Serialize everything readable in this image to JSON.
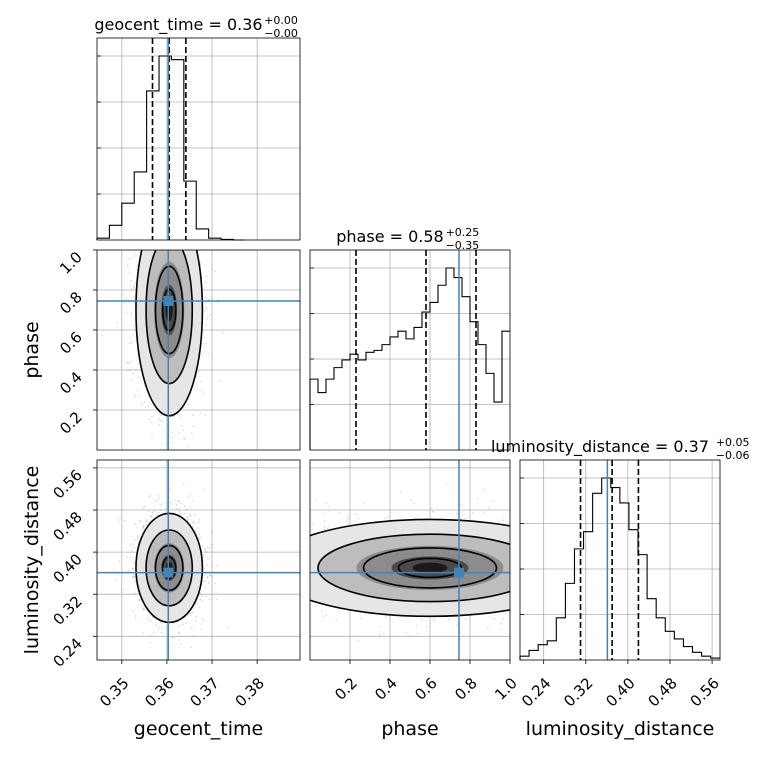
{
  "chart_data": {
    "type": "corner",
    "parameters": [
      "geocent_time",
      "phase",
      "luminosity_distance"
    ],
    "truths": {
      "geocent_time": 0.3603,
      "phase": 0.745,
      "luminosity_distance": 0.361
    },
    "marginals": [
      {
        "parameter": "geocent_time",
        "title": "geocent_time = 0.36",
        "sup": "+0.00",
        "sub": "−0.00",
        "median": 0.3605,
        "quantiles": [
          0.3568,
          0.3605,
          0.3642
        ],
        "xlim": [
          0.3445,
          0.3895
        ],
        "bin_edges": [
          0.3445,
          0.34725,
          0.35,
          0.35275,
          0.3555,
          0.35825,
          0.361,
          0.36375,
          0.3665,
          0.36925,
          0.372,
          0.37475,
          0.3775
        ],
        "counts": [
          0.01,
          0.08,
          0.2,
          0.37,
          0.81,
          1.0,
          0.98,
          0.32,
          0.06,
          0.01,
          0.003,
          0.0
        ]
      },
      {
        "parameter": "phase",
        "title": "phase = 0.58",
        "sup": "+0.25",
        "sub": "−0.35",
        "median": 0.58,
        "quantiles": [
          0.23,
          0.58,
          0.83
        ],
        "xlim": [
          0.0,
          1.0
        ],
        "bin_edges": [
          0.0,
          0.04,
          0.08,
          0.12,
          0.16,
          0.2,
          0.24,
          0.28,
          0.32,
          0.36,
          0.4,
          0.44,
          0.48,
          0.52,
          0.56,
          0.6,
          0.64,
          0.68,
          0.72,
          0.76,
          0.8,
          0.84,
          0.88,
          0.92,
          0.96,
          1.0
        ],
        "counts": [
          0.37,
          0.3,
          0.37,
          0.43,
          0.47,
          0.5,
          0.47,
          0.51,
          0.52,
          0.55,
          0.59,
          0.62,
          0.58,
          0.64,
          0.72,
          0.77,
          0.86,
          0.95,
          0.9,
          0.8,
          0.67,
          0.55,
          0.4,
          0.25,
          0.62
        ]
      },
      {
        "parameter": "luminosity_distance",
        "title": "luminosity_distance = 0.37",
        "sup": "+0.05",
        "sub": "−0.06",
        "median": 0.37,
        "quantiles": [
          0.31,
          0.37,
          0.42
        ],
        "xlim": [
          0.195,
          0.575
        ],
        "bin_edges": [
          0.195,
          0.21225,
          0.2295,
          0.24675,
          0.264,
          0.28125,
          0.2985,
          0.31575,
          0.333,
          0.35025,
          0.3675,
          0.38475,
          0.402,
          0.41925,
          0.4365,
          0.45375,
          0.471,
          0.48825,
          0.5055,
          0.52275,
          0.54,
          0.55725,
          0.575
        ],
        "counts": [
          0.02,
          0.05,
          0.08,
          0.1,
          0.22,
          0.4,
          0.58,
          0.67,
          0.87,
          0.95,
          0.9,
          0.82,
          0.68,
          0.55,
          0.32,
          0.22,
          0.15,
          0.11,
          0.07,
          0.04,
          0.02,
          0.01
        ]
      }
    ],
    "axes": {
      "geocent_time": {
        "lim": [
          0.3445,
          0.3895
        ],
        "ticks": [
          0.35,
          0.36,
          0.37,
          0.38
        ],
        "ticklabels": [
          "0.35",
          "0.36",
          "0.37",
          "0.38"
        ],
        "label": "geocent_time"
      },
      "phase": {
        "lim": [
          0.0,
          1.0
        ],
        "ticks": [
          0.2,
          0.4,
          0.6,
          0.8,
          1.0
        ],
        "ticklabels": [
          "0.2",
          "0.4",
          "0.6",
          "0.8",
          "1.0"
        ],
        "label": "phase"
      },
      "luminosity_distance": {
        "lim": [
          0.195,
          0.575
        ],
        "ticks": [
          0.24,
          0.32,
          0.4,
          0.48,
          0.56
        ],
        "ticklabels": [
          "0.24",
          "0.32",
          "0.40",
          "0.48",
          "0.56"
        ],
        "label": "luminosity_distance"
      }
    },
    "pairs": [
      {
        "x": "geocent_time",
        "y": "phase",
        "center": [
          0.3605,
          0.7
        ],
        "spread": [
          0.0032,
          0.23
        ]
      },
      {
        "x": "geocent_time",
        "y": "luminosity_distance",
        "center": [
          0.3605,
          0.37
        ],
        "spread": [
          0.0032,
          0.045
        ]
      },
      {
        "x": "phase",
        "y": "luminosity_distance",
        "center": [
          0.6,
          0.37
        ],
        "spread": [
          0.35,
          0.04
        ]
      }
    ],
    "colors": {
      "truth": "#4682b4",
      "lines": "#000000",
      "grid": "#b0b0b0"
    },
    "grid": true
  }
}
